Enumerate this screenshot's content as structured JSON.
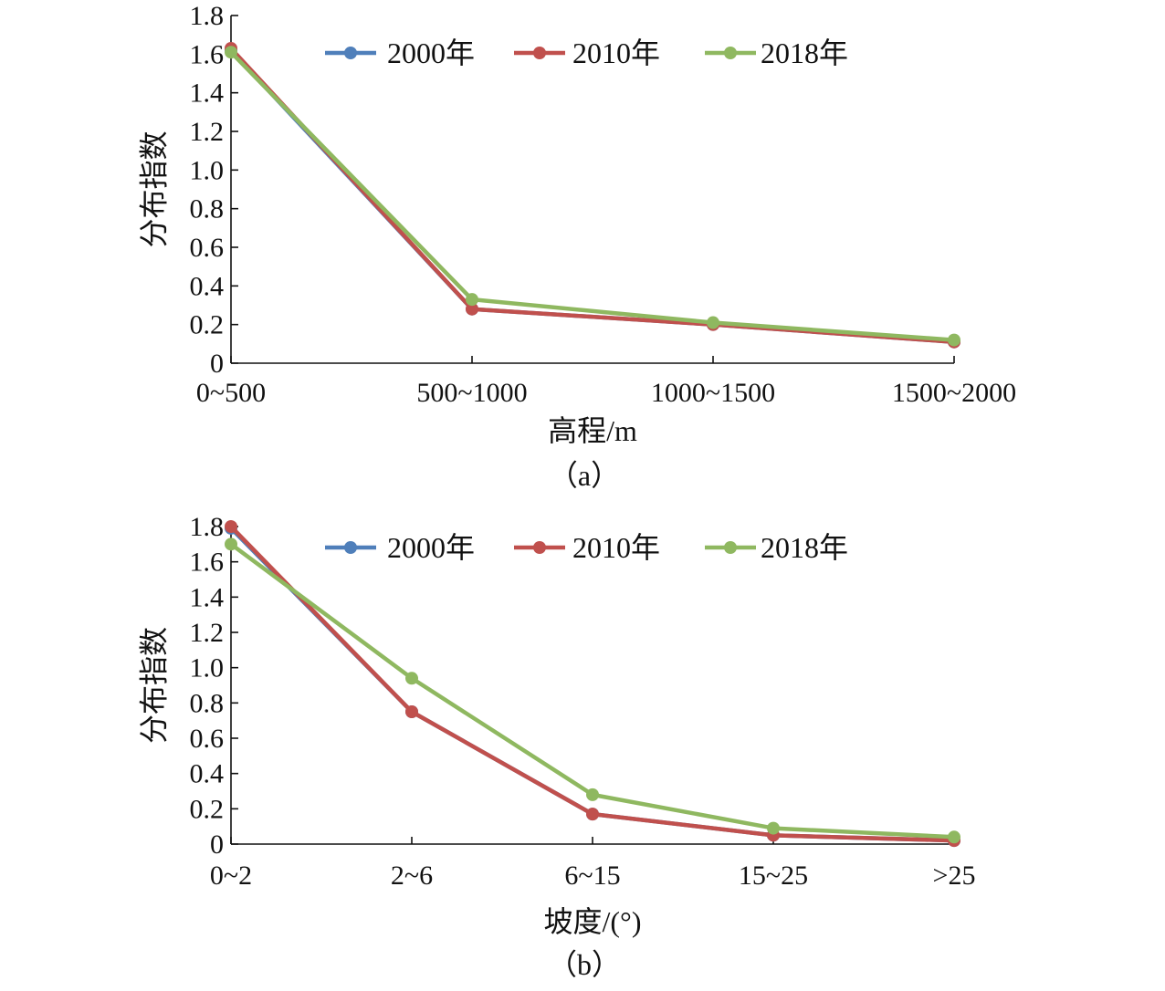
{
  "chart_data": [
    {
      "type": "line",
      "panel_label": "（a）",
      "xlabel": "高程/m",
      "ylabel": "分布指数",
      "categories": [
        "0~500",
        "500~1000",
        "1000~1500",
        "1500~2000"
      ],
      "ylim": [
        0,
        1.8
      ],
      "yticks": [
        0,
        0.2,
        0.4,
        0.6,
        0.8,
        1.0,
        1.2,
        1.4,
        1.6,
        1.8
      ],
      "ytick_labels": [
        "0",
        "0.2",
        "0.4",
        "0.6",
        "0.8",
        "1.0",
        "1.2",
        "1.4",
        "1.6",
        "1.8"
      ],
      "legend_position": "top",
      "grid": false,
      "series": [
        {
          "name": "2000年",
          "color": "#4f7fba",
          "values": [
            1.62,
            0.28,
            0.2,
            0.11
          ]
        },
        {
          "name": "2010年",
          "color": "#c0504d",
          "values": [
            1.63,
            0.28,
            0.2,
            0.11
          ]
        },
        {
          "name": "2018年",
          "color": "#8fb860",
          "values": [
            1.61,
            0.33,
            0.21,
            0.12
          ]
        }
      ]
    },
    {
      "type": "line",
      "panel_label": "（b）",
      "xlabel": "坡度/(°)",
      "ylabel": "分布指数",
      "categories": [
        "0~2",
        "2~6",
        "6~15",
        "15~25",
        ">25"
      ],
      "ylim": [
        0,
        1.8
      ],
      "yticks": [
        0,
        0.2,
        0.4,
        0.6,
        0.8,
        1.0,
        1.2,
        1.4,
        1.6,
        1.8
      ],
      "ytick_labels": [
        "0",
        "0.2",
        "0.4",
        "0.6",
        "0.8",
        "1.0",
        "1.2",
        "1.4",
        "1.6",
        "1.8"
      ],
      "legend_position": "top",
      "grid": false,
      "series": [
        {
          "name": "2000年",
          "color": "#4f7fba",
          "values": [
            1.79,
            0.75,
            0.17,
            0.05,
            0.02
          ]
        },
        {
          "name": "2010年",
          "color": "#c0504d",
          "values": [
            1.8,
            0.75,
            0.17,
            0.05,
            0.02
          ]
        },
        {
          "name": "2018年",
          "color": "#8fb860",
          "values": [
            1.7,
            0.94,
            0.28,
            0.09,
            0.04
          ]
        }
      ]
    }
  ]
}
